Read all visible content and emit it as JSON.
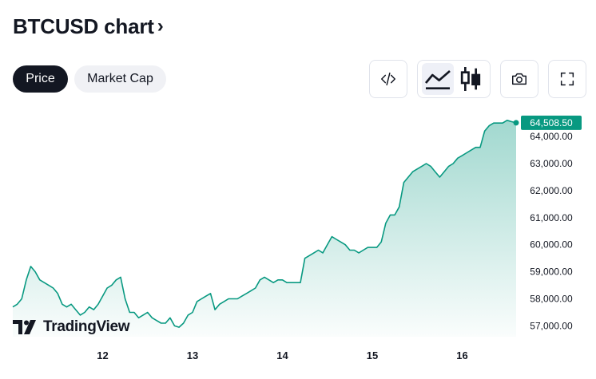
{
  "header": {
    "title": "BTCUSD chart",
    "chevron": "›"
  },
  "tabs": [
    {
      "label": "Price",
      "active": true
    },
    {
      "label": "Market Cap",
      "active": false
    }
  ],
  "toolbar": {
    "embed_icon": "code-icon",
    "area_icon": "area-chart-icon",
    "candles_icon": "candlestick-icon",
    "snapshot_icon": "camera-icon",
    "fullscreen_icon": "fullscreen-icon",
    "selected_chart_style": "area"
  },
  "watermark": {
    "logo": "tradingview-logo",
    "text": "TradingView"
  },
  "colors": {
    "line": "#089981",
    "fill_top": "#089981",
    "label_bg": "#089981",
    "text": "#131722"
  },
  "chart_data": {
    "type": "area",
    "symbol": "BTCUSD",
    "last_price": "64,508.50",
    "y_ticks": [
      "64,000.00",
      "63,000.00",
      "62,000.00",
      "61,000.00",
      "60,000.00",
      "59,000.00",
      "58,000.00",
      "57,000.00"
    ],
    "ylim": [
      56600,
      64800
    ],
    "x_ticks": [
      "12",
      "13",
      "14",
      "15",
      "16"
    ],
    "xlim": [
      11.0,
      16.6
    ],
    "grid": false,
    "series": [
      {
        "x": [
          11.0,
          11.05,
          11.1,
          11.15,
          11.2,
          11.25,
          11.3,
          11.35,
          11.4,
          11.45,
          11.5,
          11.55,
          11.6,
          11.65,
          11.7,
          11.75,
          11.8,
          11.85,
          11.9,
          11.95,
          12.0,
          12.05,
          12.1,
          12.15,
          12.2,
          12.25,
          12.3,
          12.35,
          12.4,
          12.45,
          12.5,
          12.55,
          12.6,
          12.65,
          12.7,
          12.75,
          12.8,
          12.85,
          12.9,
          12.95,
          13.0,
          13.05,
          13.1,
          13.15,
          13.2,
          13.25,
          13.3,
          13.35,
          13.4,
          13.45,
          13.5,
          13.55,
          13.6,
          13.65,
          13.7,
          13.75,
          13.8,
          13.85,
          13.9,
          13.95,
          14.0,
          14.05,
          14.1,
          14.15,
          14.2,
          14.25,
          14.3,
          14.35,
          14.4,
          14.45,
          14.5,
          14.55,
          14.6,
          14.65,
          14.7,
          14.75,
          14.8,
          14.85,
          14.9,
          14.95,
          15.0,
          15.05,
          15.1,
          15.15,
          15.2,
          15.25,
          15.3,
          15.35,
          15.4,
          15.45,
          15.5,
          15.55,
          15.6,
          15.65,
          15.7,
          15.75,
          15.8,
          15.85,
          15.9,
          15.95,
          16.0,
          16.05,
          16.1,
          16.15,
          16.2,
          16.25,
          16.3,
          16.35,
          16.4,
          16.45,
          16.5,
          16.55,
          16.6
        ],
        "y": [
          57700,
          57800,
          58000,
          58700,
          59200,
          59000,
          58700,
          58600,
          58500,
          58400,
          58200,
          57800,
          57700,
          57800,
          57600,
          57400,
          57500,
          57700,
          57600,
          57800,
          58100,
          58400,
          58500,
          58700,
          58800,
          58000,
          57500,
          57500,
          57300,
          57400,
          57500,
          57300,
          57200,
          57100,
          57100,
          57300,
          57000,
          56950,
          57100,
          57400,
          57500,
          57900,
          58000,
          58100,
          58200,
          57600,
          57800,
          57900,
          58000,
          58000,
          58000,
          58100,
          58200,
          58300,
          58400,
          58700,
          58800,
          58700,
          58600,
          58700,
          58700,
          58600,
          58600,
          58600,
          58600,
          59500,
          59600,
          59700,
          59800,
          59700,
          60000,
          60300,
          60200,
          60100,
          60000,
          59800,
          59800,
          59700,
          59800,
          59900,
          59900,
          59900,
          60100,
          60800,
          61100,
          61100,
          61400,
          62300,
          62500,
          62700,
          62800,
          62900,
          63000,
          62900,
          62700,
          62500,
          62700,
          62900,
          63000,
          63200,
          63300,
          63400,
          63500,
          63600,
          63600,
          64200,
          64400,
          64500,
          64500,
          64500,
          64600,
          64550,
          64508.5
        ]
      }
    ]
  }
}
